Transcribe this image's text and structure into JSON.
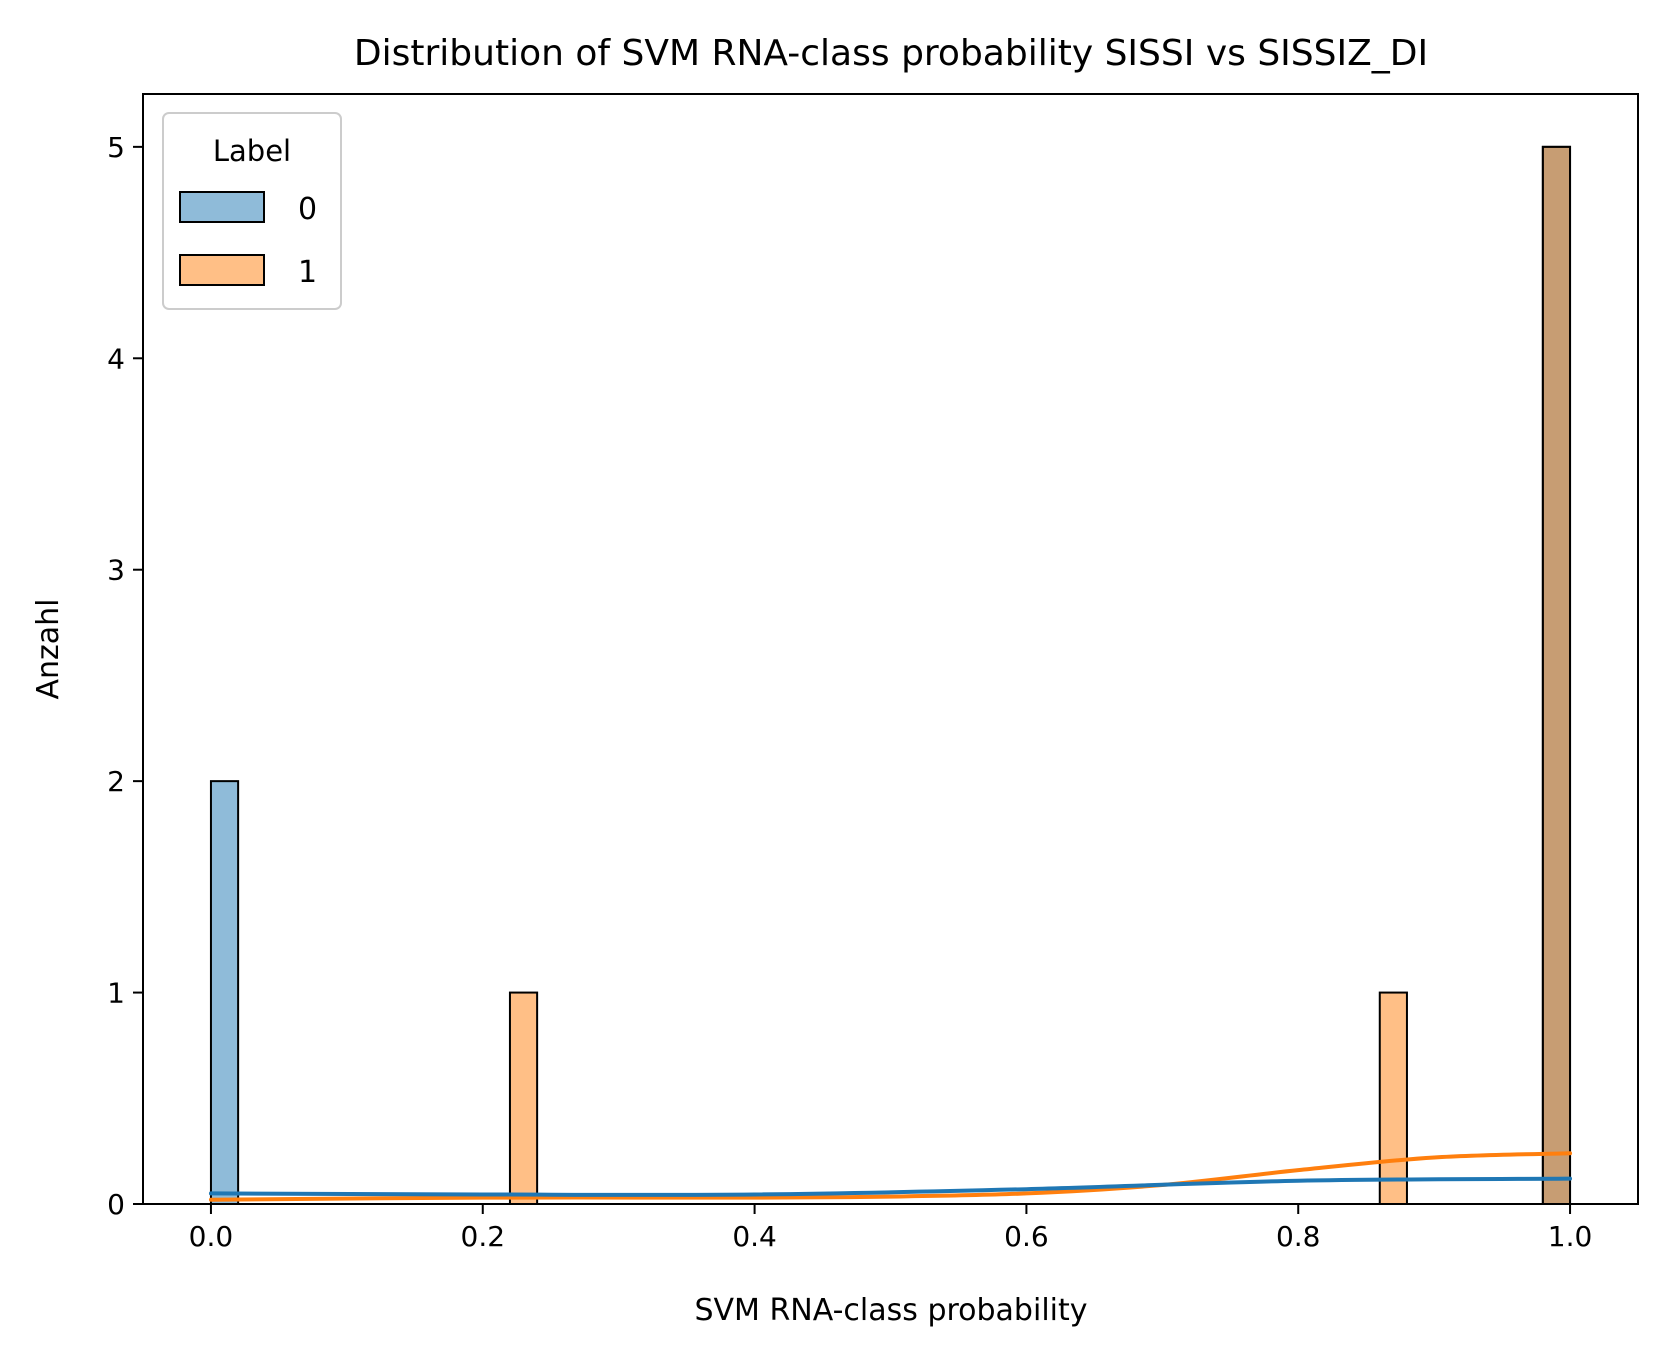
{
  "chart_data": {
    "type": "bar",
    "title": "Distribution of SVM RNA-class probability SISSI vs SISSIZ_DI",
    "xlabel": "SVM RNA-class probability",
    "ylabel": "Anzahl",
    "xlim": [
      -0.05,
      1.05
    ],
    "ylim": [
      0,
      5.25
    ],
    "xticks": [
      "0.0",
      "0.2",
      "0.4",
      "0.6",
      "0.8",
      "1.0"
    ],
    "xtick_values": [
      0.0,
      0.2,
      0.4,
      0.6,
      0.8,
      1.0
    ],
    "yticks": [
      "0",
      "1",
      "2",
      "3",
      "4",
      "5"
    ],
    "ytick_values": [
      0,
      1,
      2,
      3,
      4,
      5
    ],
    "grid": false,
    "legend": {
      "title": "Label",
      "placement": "top-left",
      "entries": [
        {
          "label": "0",
          "color": "#1f77b4"
        },
        {
          "label": "1",
          "color": "#ff7f0e"
        }
      ]
    },
    "bin_width": 0.02,
    "series": [
      {
        "name": "0",
        "color": "#1f77b4",
        "bars": [
          {
            "x0": 0.0,
            "x1": 0.02,
            "count": 2
          },
          {
            "x0": 0.98,
            "x1": 1.0,
            "count": 5
          }
        ],
        "kde": {
          "x": [
            0.0,
            0.2,
            0.4,
            0.6,
            0.8,
            1.0
          ],
          "y": [
            0.05,
            0.045,
            0.045,
            0.07,
            0.11,
            0.12
          ]
        }
      },
      {
        "name": "1",
        "color": "#ff7f0e",
        "bars": [
          {
            "x0": 0.22,
            "x1": 0.24,
            "count": 1
          },
          {
            "x0": 0.86,
            "x1": 0.88,
            "count": 1
          },
          {
            "x0": 0.98,
            "x1": 1.0,
            "count": 5
          }
        ],
        "kde": {
          "x": [
            0.0,
            0.2,
            0.4,
            0.5,
            0.6,
            0.7,
            0.8,
            0.9,
            1.0
          ],
          "y": [
            0.02,
            0.03,
            0.03,
            0.035,
            0.05,
            0.09,
            0.16,
            0.22,
            0.24
          ]
        }
      }
    ]
  }
}
